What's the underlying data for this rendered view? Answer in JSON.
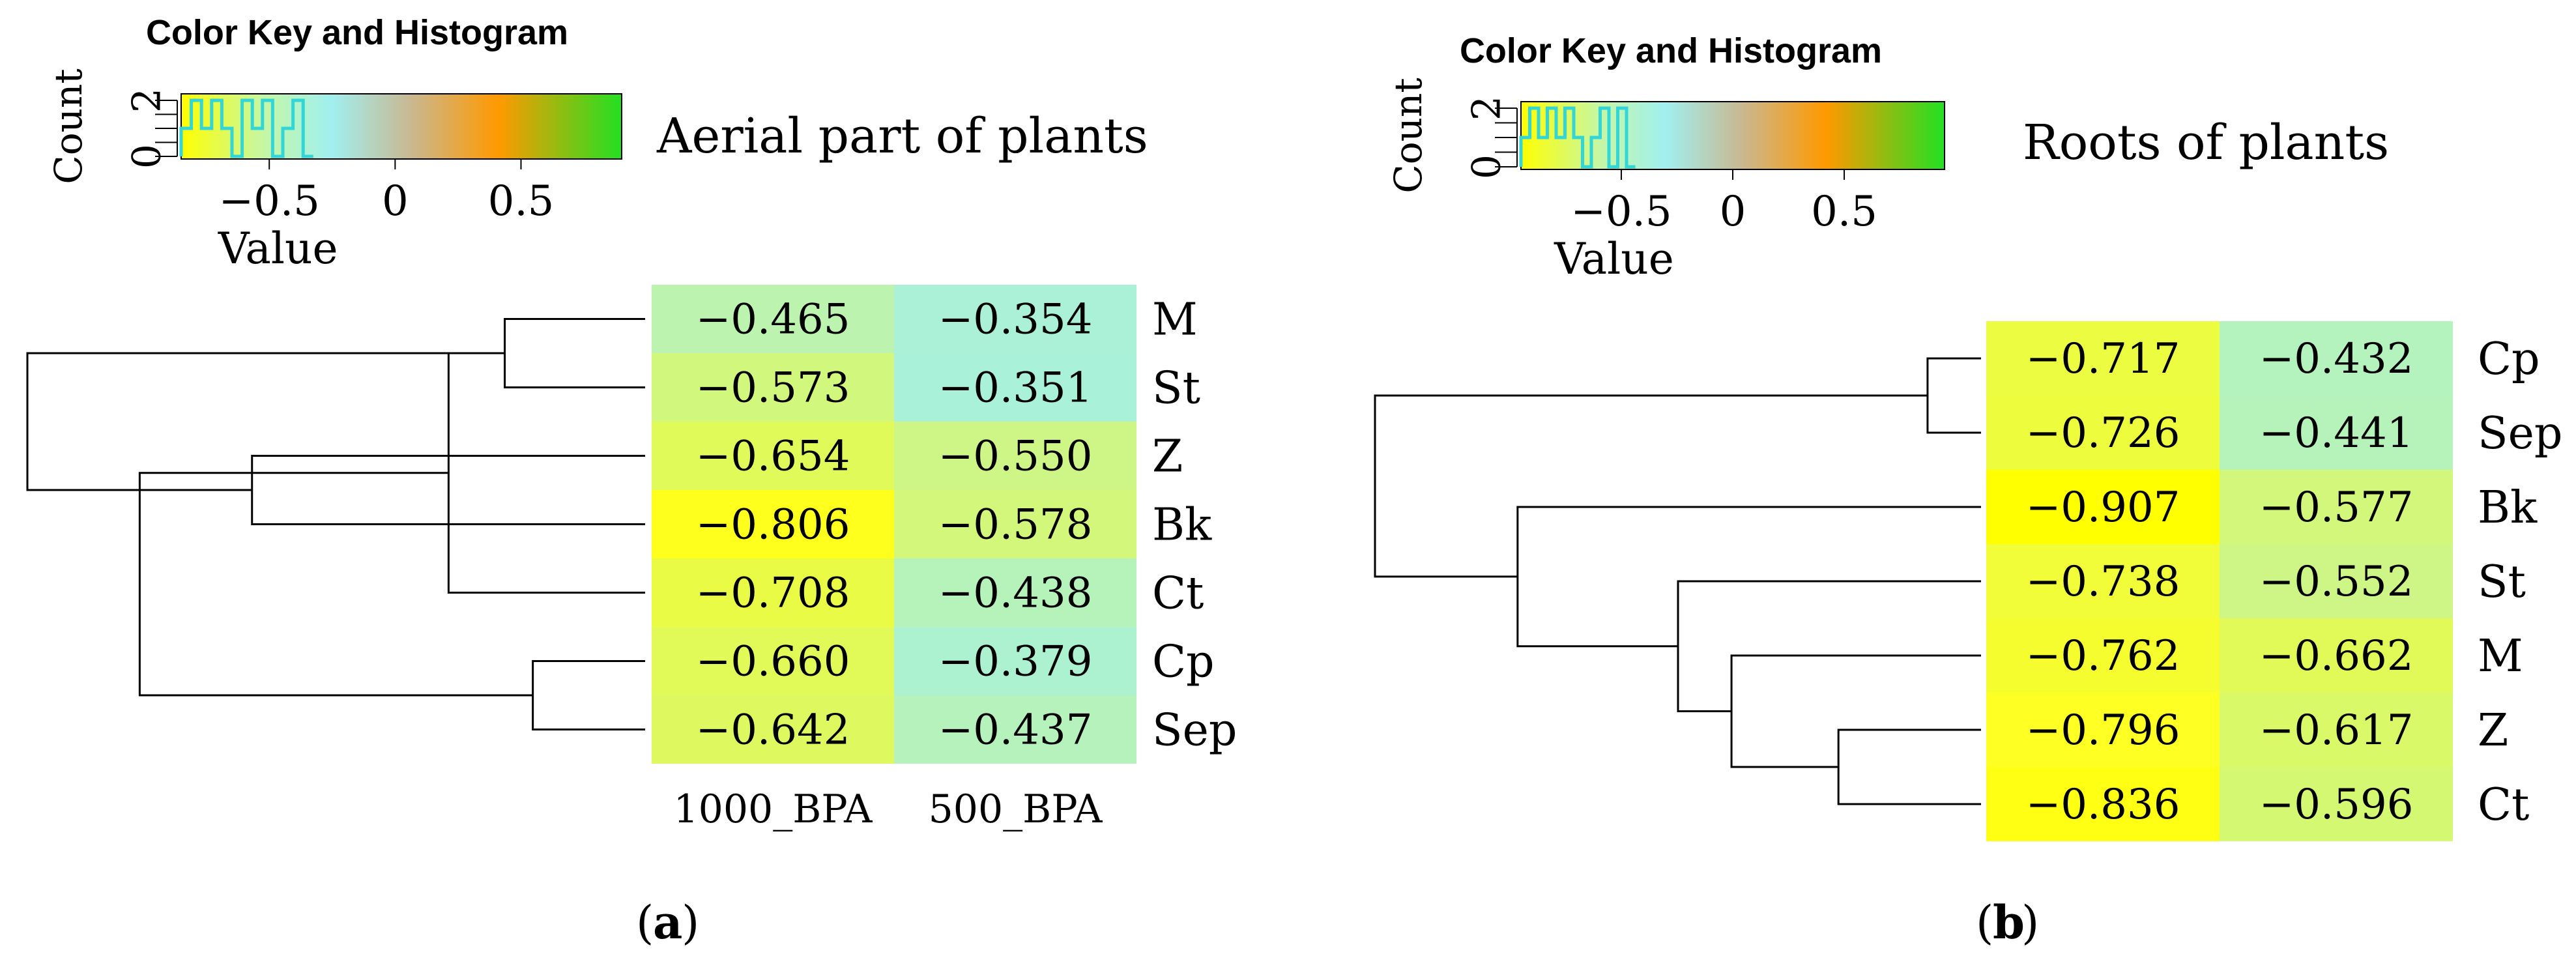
{
  "colors": {
    "gradient": [
      "#ffff00",
      "#c8f7a0",
      "#a0f0f0",
      "#c9b892",
      "#ff9900",
      "#22e022"
    ],
    "hist_line": "#33d6d6",
    "tree": "#000000",
    "text": "#000000"
  },
  "chart_data": [
    {
      "type": "heatmap",
      "panel_label": "a",
      "title": "Aerial part of plants",
      "color_key": {
        "title": "Color Key and Histogram",
        "xlabel": "Value",
        "ylabel": "Count",
        "x_ticks": [
          -0.5,
          0,
          0.5
        ],
        "x_tick_labels": [
          "−0.5",
          "0",
          "0.5"
        ],
        "y_ticks": [
          0,
          2
        ],
        "range": [
          -0.85,
          0.9
        ]
      },
      "columns": [
        "1000_BPA",
        "500_BPA"
      ],
      "rows": [
        "M",
        "St",
        "Z",
        "Bk",
        "Ct",
        "Cp",
        "Sep"
      ],
      "values": [
        [
          -0.465,
          -0.354
        ],
        [
          -0.573,
          -0.351
        ],
        [
          -0.654,
          -0.55
        ],
        [
          -0.806,
          -0.578
        ],
        [
          -0.708,
          -0.438
        ],
        [
          -0.66,
          -0.379
        ],
        [
          -0.642,
          -0.437
        ]
      ],
      "cell_labels": [
        [
          "−0.465",
          "−0.354"
        ],
        [
          "−0.573",
          "−0.351"
        ],
        [
          "−0.654",
          "−0.550"
        ],
        [
          "−0.806",
          "−0.578"
        ],
        [
          "−0.708",
          "−0.438"
        ],
        [
          "−0.660",
          "−0.379"
        ],
        [
          "−0.642",
          "−0.437"
        ]
      ],
      "dendrogram": [
        [
          0,
          1,
          1.0
        ],
        [
          5,
          6,
          0.8
        ],
        [
          4,
          7,
          1.4
        ],
        [
          2,
          3,
          2.8
        ],
        [
          9,
          8,
          3.6
        ],
        [
          10,
          7.0,
          4.4
        ]
      ]
    },
    {
      "type": "heatmap",
      "panel_label": "b",
      "title": "Roots of plants",
      "color_key": {
        "title": "Color Key and Histogram",
        "xlabel": "Value",
        "ylabel": "Count",
        "x_ticks": [
          -0.5,
          0,
          0.5
        ],
        "x_tick_labels": [
          "−0.5",
          "0",
          "0.5"
        ],
        "y_ticks": [
          0,
          2
        ],
        "range": [
          -0.95,
          0.95
        ]
      },
      "columns": [],
      "rows": [
        "Cp",
        "Sep",
        "Bk",
        "St",
        "M",
        "Z",
        "Ct"
      ],
      "values": [
        [
          -0.717,
          -0.432
        ],
        [
          -0.726,
          -0.441
        ],
        [
          -0.907,
          -0.577
        ],
        [
          -0.738,
          -0.552
        ],
        [
          -0.762,
          -0.662
        ],
        [
          -0.796,
          -0.617
        ],
        [
          -0.836,
          -0.596
        ]
      ],
      "cell_labels": [
        [
          "−0.717",
          "−0.432"
        ],
        [
          "−0.726",
          "−0.441"
        ],
        [
          "−0.907",
          "−0.577"
        ],
        [
          "−0.738",
          "−0.552"
        ],
        [
          "−0.762",
          "−0.662"
        ],
        [
          "−0.796",
          "−0.617"
        ],
        [
          "−0.836",
          "−0.596"
        ]
      ],
      "dendrogram": [
        [
          0,
          1,
          0.3
        ],
        [
          5,
          6,
          0.8
        ],
        [
          4,
          8,
          1.4
        ],
        [
          3,
          9,
          1.7
        ],
        [
          2,
          10,
          2.6
        ],
        [
          7,
          11,
          3.4
        ]
      ]
    }
  ]
}
